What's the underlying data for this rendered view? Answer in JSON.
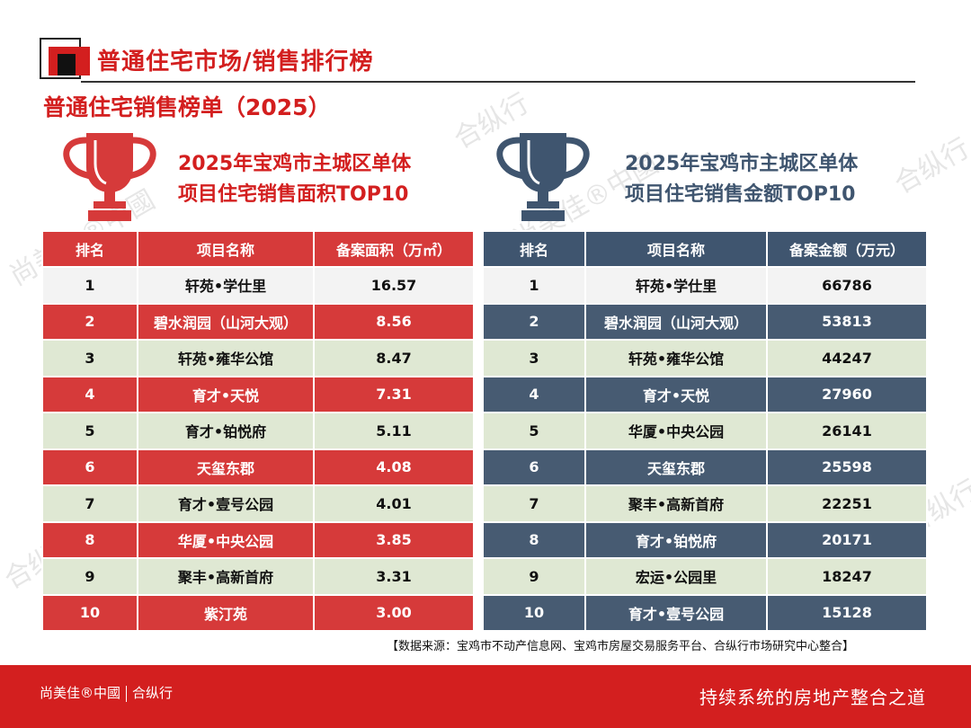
{
  "header": {
    "section_title": "普通住宅市场/销售排行榜",
    "subtitle": "普通住宅销售榜单（2025）"
  },
  "colors": {
    "accent_red": "#d31f1f",
    "accent_blue": "#3f556f",
    "row_green": "#dfe8d3"
  },
  "watermark": {
    "text_a": "尚美佳®中國",
    "text_b": "合纵行"
  },
  "left_panel": {
    "icon": "trophy-icon",
    "title_line1": "2025年宝鸡市主城区单体",
    "title_line2": "项目住宅销售面积TOP10",
    "columns": [
      "排名",
      "项目名称",
      "备案面积（万㎡）"
    ],
    "rows": [
      {
        "rank": "1",
        "name": "轩苑•学仕里",
        "value": "16.57"
      },
      {
        "rank": "2",
        "name": "碧水润园（山河大观）",
        "value": "8.56"
      },
      {
        "rank": "3",
        "name": "轩苑•雍华公馆",
        "value": "8.47"
      },
      {
        "rank": "4",
        "name": "育才•天悦",
        "value": "7.31"
      },
      {
        "rank": "5",
        "name": "育才•铂悦府",
        "value": "5.11"
      },
      {
        "rank": "6",
        "name": "天玺东郡",
        "value": "4.08"
      },
      {
        "rank": "7",
        "name": "育才•壹号公园",
        "value": "4.01"
      },
      {
        "rank": "8",
        "name": "华厦•中央公园",
        "value": "3.85"
      },
      {
        "rank": "9",
        "name": "聚丰•高新首府",
        "value": "3.31"
      },
      {
        "rank": "10",
        "name": "紫汀苑",
        "value": "3.00"
      }
    ]
  },
  "right_panel": {
    "icon": "trophy-icon",
    "title_line1": "2025年宝鸡市主城区单体",
    "title_line2": "项目住宅销售金额TOP10",
    "columns": [
      "排名",
      "项目名称",
      "备案金额（万元）"
    ],
    "rows": [
      {
        "rank": "1",
        "name": "轩苑•学仕里",
        "value": "66786"
      },
      {
        "rank": "2",
        "name": "碧水润园（山河大观）",
        "value": "53813"
      },
      {
        "rank": "3",
        "name": "轩苑•雍华公馆",
        "value": "44247"
      },
      {
        "rank": "4",
        "name": "育才•天悦",
        "value": "27960"
      },
      {
        "rank": "5",
        "name": "华厦•中央公园",
        "value": "26141"
      },
      {
        "rank": "6",
        "name": "天玺东郡",
        "value": "25598"
      },
      {
        "rank": "7",
        "name": "聚丰•高新首府",
        "value": "22251"
      },
      {
        "rank": "8",
        "name": "育才•铂悦府",
        "value": "20171"
      },
      {
        "rank": "9",
        "name": "宏运•公园里",
        "value": "18247"
      },
      {
        "rank": "10",
        "name": "育才•壹号公园",
        "value": "15128"
      }
    ]
  },
  "source_note": "【数据来源：宝鸡市不动产信息网、宝鸡市房屋交易服务平台、合纵行市场研究中心整合】",
  "footer": {
    "logo_a": "尚美佳®中國",
    "logo_b": "合纵行",
    "slogan": "持续系统的房地产整合之道"
  }
}
